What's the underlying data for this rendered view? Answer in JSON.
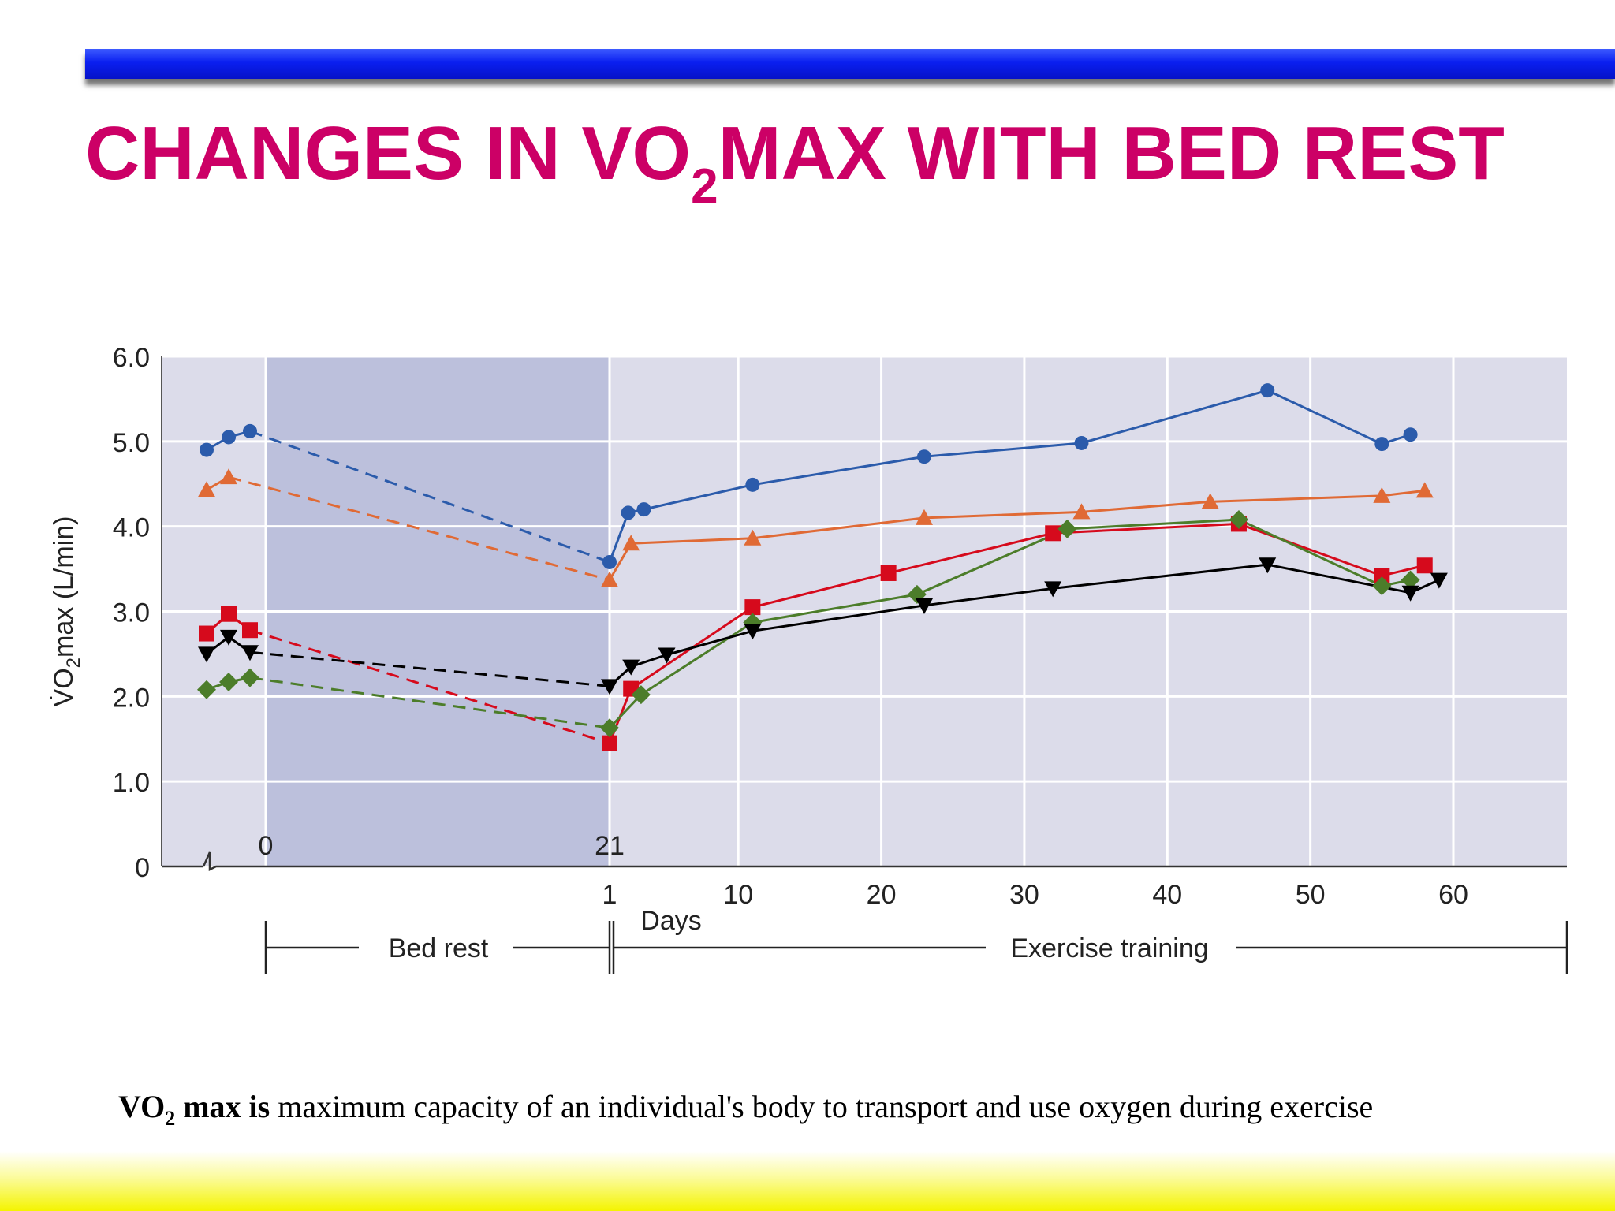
{
  "slide": {
    "title_pre": "CHANGES IN VO",
    "title_sub": "2",
    "title_post": "MAX WITH BED REST",
    "caption_bold_pre": "VO",
    "caption_bold_sub": "2",
    "caption_bold_post": " max is",
    "caption_rest": " maximum capacity of an individual's body to transport and use oxygen during  exercise",
    "colors": {
      "title": "#cc0066",
      "top_bar": "#0a1ff0",
      "bottom_band": "#f4f400"
    }
  },
  "chart_data": {
    "type": "line",
    "ylabel_pre": "V̇O",
    "ylabel_sub": "2",
    "ylabel_post": "max (L/min)",
    "xlabel": "Days",
    "ylim": [
      0,
      6
    ],
    "yticks": [
      "0",
      "1.0",
      "2.0",
      "3.0",
      "4.0",
      "5.0",
      "6.0"
    ],
    "xticks": [
      "1",
      "10",
      "20",
      "30",
      "40",
      "50",
      "60"
    ],
    "bedrest_ticks": [
      "0",
      "21"
    ],
    "phases": [
      "Bed rest",
      "Exercise training"
    ],
    "grid": true,
    "series": [
      {
        "color": "#2b5bab",
        "marker": "circle",
        "pre": [
          4.9,
          5.05,
          5.12
        ],
        "post": [
          [
            1,
            3.58
          ],
          [
            2.3,
            4.16
          ],
          [
            3.4,
            4.2
          ],
          [
            11,
            4.49
          ],
          [
            23,
            4.82
          ],
          [
            34,
            4.98
          ],
          [
            47,
            5.6
          ],
          [
            55,
            4.97
          ],
          [
            57,
            5.08
          ]
        ]
      },
      {
        "color": "#e06a35",
        "marker": "triangle-up",
        "pre": [
          4.43,
          4.58
        ],
        "post": [
          [
            1,
            3.37
          ],
          [
            2.5,
            3.8
          ],
          [
            11,
            3.86
          ],
          [
            23,
            4.1
          ],
          [
            34,
            4.17
          ],
          [
            43,
            4.29
          ],
          [
            55,
            4.36
          ],
          [
            58,
            4.42
          ]
        ]
      },
      {
        "color": "#d60a1c",
        "marker": "square",
        "pre": [
          2.74,
          2.97,
          2.78
        ],
        "post": [
          [
            1,
            1.45
          ],
          [
            2.5,
            2.09
          ],
          [
            11,
            3.05
          ],
          [
            20.5,
            3.45
          ],
          [
            32,
            3.92
          ],
          [
            45,
            4.03
          ],
          [
            55,
            3.42
          ],
          [
            58,
            3.54
          ]
        ]
      },
      {
        "color": "#4c7d2a",
        "marker": "diamond",
        "pre": [
          2.08,
          2.17,
          2.22
        ],
        "post": [
          [
            1,
            1.63
          ],
          [
            3.2,
            2.02
          ],
          [
            11,
            2.87
          ],
          [
            22.5,
            3.2
          ],
          [
            33,
            3.97
          ],
          [
            45,
            4.08
          ],
          [
            55,
            3.3
          ],
          [
            57,
            3.37
          ]
        ]
      },
      {
        "color": "#000000",
        "marker": "triangle-down",
        "pre": [
          2.5,
          2.7,
          2.52
        ],
        "post": [
          [
            1,
            2.12
          ],
          [
            2.5,
            2.35
          ],
          [
            5,
            2.49
          ],
          [
            11,
            2.77
          ],
          [
            23,
            3.07
          ],
          [
            32,
            3.27
          ],
          [
            47,
            3.55
          ],
          [
            57,
            3.22
          ],
          [
            59,
            3.37
          ]
        ]
      }
    ]
  }
}
